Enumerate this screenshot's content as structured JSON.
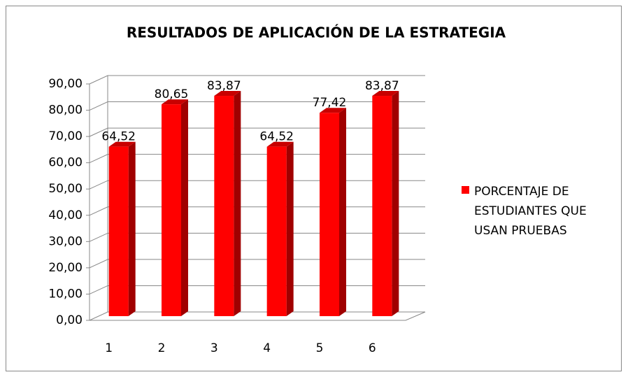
{
  "chart_data": {
    "type": "bar",
    "title": "RESULTADOS DE APLICACIÓN DE LA ESTRATEGIA",
    "categories": [
      "1",
      "2",
      "3",
      "4",
      "5",
      "6"
    ],
    "series": [
      {
        "name": "PORCENTAJE DE ESTUDIANTES QUE USAN PRUEBAS",
        "color": "#ff0000",
        "values": [
          64.52,
          80.65,
          83.87,
          64.52,
          77.42,
          83.87
        ],
        "value_labels": [
          "64,52",
          "80,65",
          "83,87",
          "64,52",
          "77,42",
          "83,87"
        ]
      }
    ],
    "ylim": [
      0,
      90
    ],
    "yticks": [
      {
        "value": 0,
        "label": "0,00"
      },
      {
        "value": 10,
        "label": "10,00"
      },
      {
        "value": 20,
        "label": "20,00"
      },
      {
        "value": 30,
        "label": "30,00"
      },
      {
        "value": 40,
        "label": "40,00"
      },
      {
        "value": 50,
        "label": "50,00"
      },
      {
        "value": 60,
        "label": "60,00"
      },
      {
        "value": 70,
        "label": "70,00"
      },
      {
        "value": 80,
        "label": "80,00"
      },
      {
        "value": 90,
        "label": "90,00"
      }
    ],
    "grid": true,
    "legend": "right"
  }
}
